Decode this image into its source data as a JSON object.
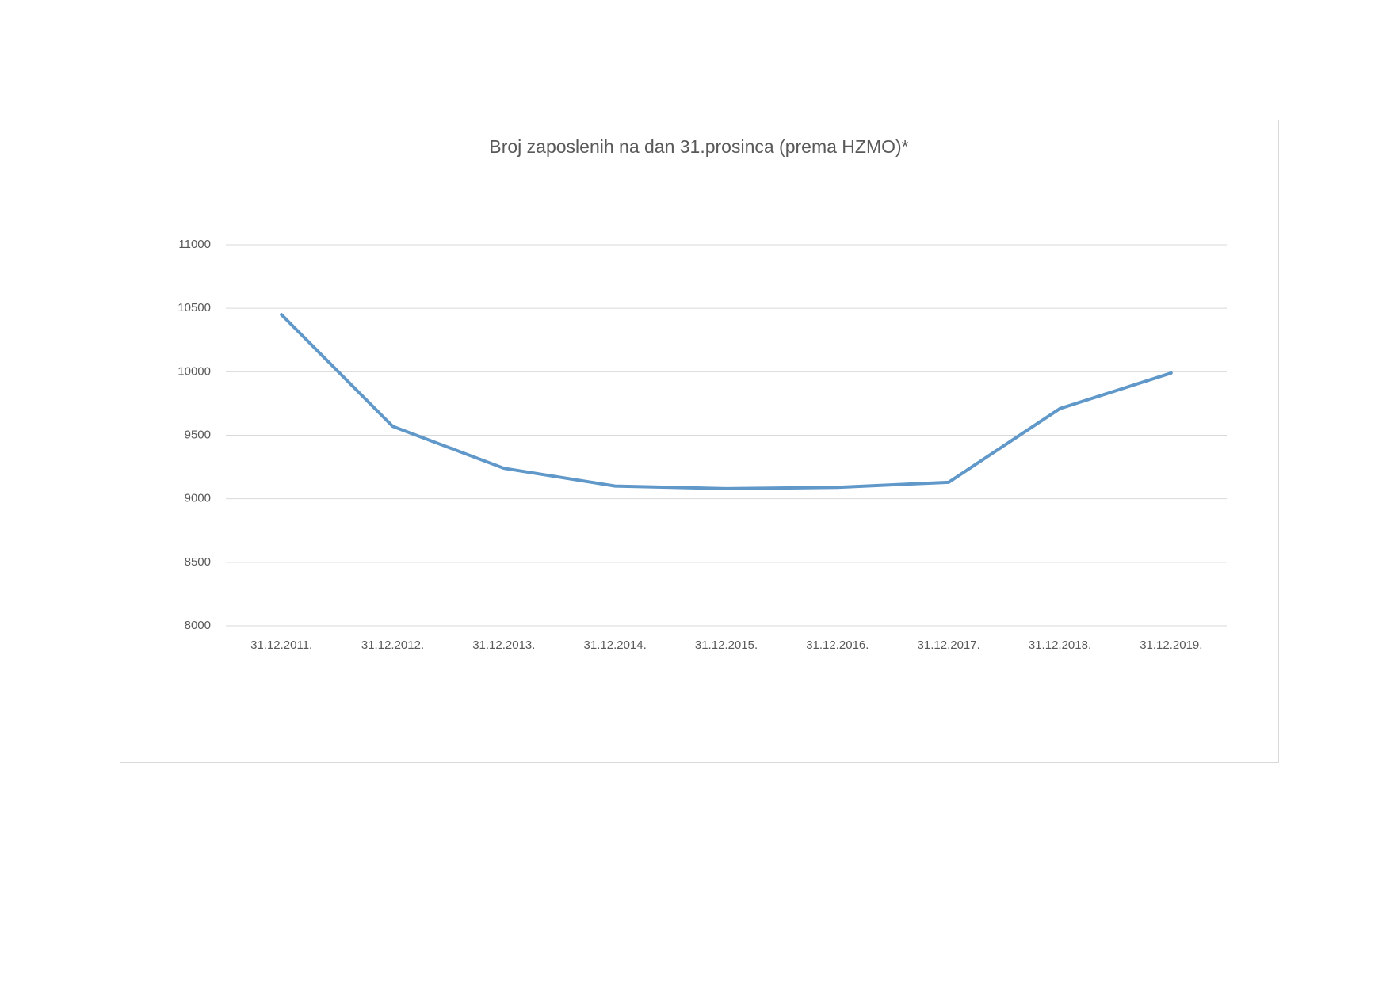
{
  "chart_data": {
    "type": "line",
    "title": "Broj zaposlenih na dan 31.prosinca (prema HZMO)*",
    "categories": [
      "31.12.2011.",
      "31.12.2012.",
      "31.12.2013.",
      "31.12.2014.",
      "31.12.2015.",
      "31.12.2016.",
      "31.12.2017.",
      "31.12.2018.",
      "31.12.2019."
    ],
    "values": [
      10450,
      9570,
      9240,
      9100,
      9080,
      9090,
      9130,
      9710,
      9990
    ],
    "color": "#5f98c9",
    "ylim": [
      8000,
      11000
    ],
    "yticks": [
      8000,
      8500,
      9000,
      9500,
      10000,
      10500,
      11000
    ],
    "grid": true
  }
}
